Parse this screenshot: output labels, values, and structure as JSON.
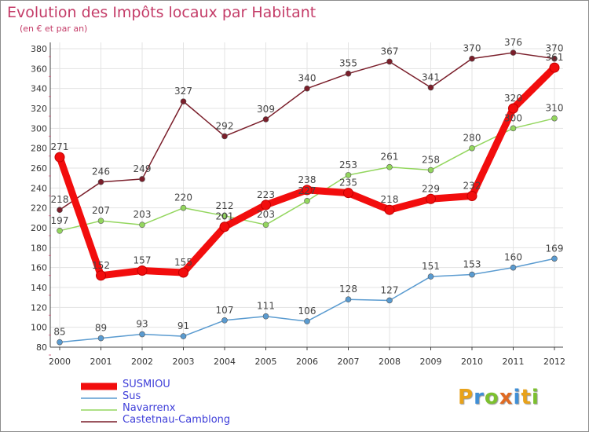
{
  "title": "Evolution des Impôts locaux par Habitant",
  "subtitle": "(en € et par an)",
  "brand": {
    "text": "Proxiti",
    "colors": [
      "#e8a21a",
      "#3f8fd6",
      "#7cc02f",
      "#e06a22",
      "#3f8fd6",
      "#e8a21a",
      "#7cc02f"
    ]
  },
  "chart_data": {
    "type": "line",
    "title": "Evolution des Impôts locaux par Habitant",
    "subtitle": "(en € et par an)",
    "xlabel": "",
    "ylabel": "",
    "ylim": [
      80,
      380
    ],
    "y_ticks": [
      80,
      100,
      120,
      140,
      160,
      180,
      200,
      220,
      240,
      260,
      280,
      300,
      320,
      340,
      360,
      380
    ],
    "grid": true,
    "legend_position": "bottom-left",
    "x": [
      "2000",
      "2001",
      "2002",
      "2003",
      "2004",
      "2005",
      "2006",
      "2007",
      "2008",
      "2009",
      "2010",
      "2011",
      "2012"
    ],
    "series": [
      {
        "name": "Castetnau-Camblong",
        "color": "#7a1e2a",
        "style": "thin",
        "values": [
          218,
          246,
          249,
          327,
          292,
          309,
          340,
          355,
          367,
          341,
          370,
          376,
          370
        ],
        "labels": [
          "218",
          "246",
          "249",
          "327",
          "292",
          "309",
          "340",
          "355",
          "367",
          "341",
          "370",
          "376",
          "370"
        ]
      },
      {
        "name": "Navarrenx",
        "color": "#93d65e",
        "style": "thin",
        "values": [
          197,
          207,
          203,
          220,
          212,
          203,
          227,
          253,
          261,
          258,
          280,
          300,
          310
        ],
        "labels": [
          "197",
          "207",
          "203",
          "220",
          "212",
          "203",
          "227",
          "253",
          "261",
          "258",
          "280",
          "300",
          "310"
        ]
      },
      {
        "name": "Sus",
        "color": "#5a9bd0",
        "style": "thin",
        "values": [
          85,
          89,
          93,
          91,
          107,
          111,
          106,
          128,
          127,
          151,
          153,
          160,
          169
        ],
        "labels": [
          "85",
          "89",
          "93",
          "91",
          "107",
          "111",
          "106",
          "128",
          "127",
          "151",
          "153",
          "160",
          "169"
        ]
      },
      {
        "name": "SUSMIOU",
        "color": "#f20d0d",
        "style": "thick",
        "values": [
          271,
          152,
          157,
          155,
          201,
          223,
          238,
          235,
          218,
          229,
          232,
          320,
          361
        ],
        "labels": [
          "271",
          "152",
          "157",
          "155",
          "201",
          "223",
          "238",
          "235",
          "218",
          "229",
          "232",
          "320",
          "361"
        ]
      }
    ],
    "legend": [
      {
        "name": "SUSMIOU",
        "color": "#f20d0d",
        "style": "thick"
      },
      {
        "name": "Sus",
        "color": "#5a9bd0",
        "style": "thin"
      },
      {
        "name": "Navarrenx",
        "color": "#93d65e",
        "style": "thin"
      },
      {
        "name": "Castetnau-Camblong",
        "color": "#7a1e2a",
        "style": "thin"
      }
    ]
  }
}
